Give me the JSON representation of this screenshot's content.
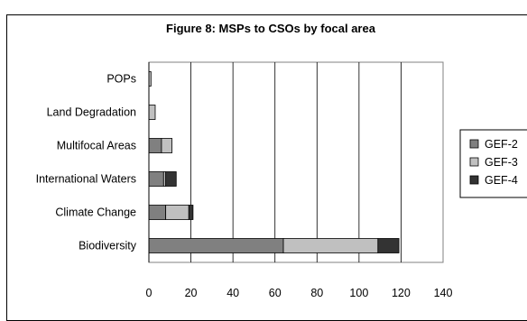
{
  "chart_data": {
    "type": "bar",
    "orientation": "horizontal",
    "stacked": true,
    "title": "Figure 8: MSPs to CSOs by focal area",
    "categories": [
      "POPs",
      "Land Degradation",
      "Multifocal Areas",
      "International Waters",
      "Climate Change",
      "Biodiversity"
    ],
    "series": [
      {
        "name": "GEF-2",
        "color": "#808080",
        "values": [
          0,
          0,
          6,
          7,
          8,
          64
        ]
      },
      {
        "name": "GEF-3",
        "color": "#c0c0c0",
        "values": [
          1,
          3,
          5,
          1,
          11,
          45
        ]
      },
      {
        "name": "GEF-4",
        "color": "#333333",
        "values": [
          0,
          0,
          0,
          5,
          2,
          10
        ]
      }
    ],
    "xlim": [
      0,
      140
    ],
    "xticks": [
      0,
      20,
      40,
      60,
      80,
      100,
      120,
      140
    ],
    "xlabel": "",
    "ylabel": "",
    "grid": "vertical",
    "legend": "right"
  }
}
